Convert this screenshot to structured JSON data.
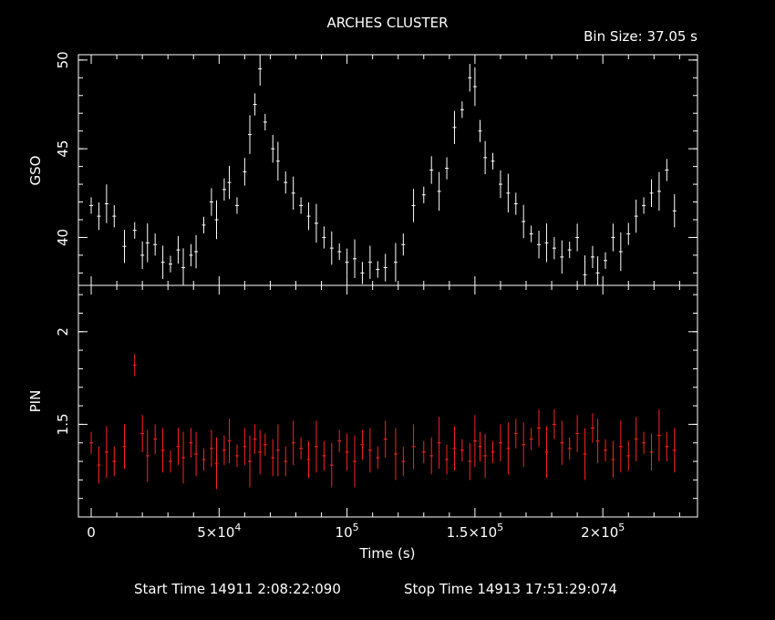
{
  "title": "ARCHES CLUSTER",
  "bin_label": "Bin Size: 37.05 s",
  "footer": {
    "start": "Start Time 14911  2:08:22:090",
    "stop": "Stop Time 14913 17:51:29:074"
  },
  "colors": {
    "gso": "#ffffff",
    "pin": "#ff2020",
    "axes": "#ffffff",
    "background": "#000000"
  },
  "chart_data": [
    {
      "type": "scatter",
      "panel": "top",
      "ylabel": "GSO",
      "xlabel": "",
      "xlim": [
        -5000,
        237000
      ],
      "ylim": [
        37.3,
        50.3
      ],
      "yticks": [
        40,
        45,
        50
      ],
      "ytick_labels": [
        "40",
        "45",
        "50"
      ],
      "color": "#ffffff",
      "x": [
        0,
        3000,
        6000,
        9000,
        13000,
        17000,
        20000,
        22000,
        25000,
        28000,
        31000,
        34000,
        36000,
        39000,
        41000,
        44000,
        47000,
        49000,
        52000,
        54000,
        57000,
        60000,
        62000,
        64000,
        66000,
        68000,
        71000,
        73000,
        76000,
        79000,
        82000,
        85000,
        88000,
        91000,
        94000,
        97000,
        100000,
        103000,
        106000,
        109000,
        112000,
        115000,
        119000,
        122000,
        126000,
        130000,
        133000,
        136000,
        139000,
        142000,
        145000,
        148000,
        150000,
        152000,
        154000,
        157000,
        160000,
        163000,
        166000,
        169000,
        172000,
        175000,
        178000,
        181000,
        184000,
        187000,
        190000,
        193000,
        196000,
        198000,
        201000,
        204000,
        207000,
        210000,
        213000,
        216000,
        219000,
        222000,
        225000,
        228000
      ],
      "y": [
        41.8,
        41.2,
        41.9,
        41.2,
        39.5,
        40.4,
        39.0,
        39.7,
        39.6,
        38.6,
        38.5,
        39.3,
        38.3,
        39.0,
        39.2,
        40.7,
        42.0,
        41.0,
        42.7,
        43.1,
        41.8,
        43.7,
        45.8,
        47.5,
        49.5,
        46.5,
        45.0,
        44.3,
        43.1,
        42.5,
        41.8,
        41.2,
        40.8,
        40.0,
        39.4,
        39.2,
        38.6,
        38.8,
        38.0,
        38.6,
        38.2,
        38.3,
        38.6,
        39.6,
        41.8,
        42.4,
        43.8,
        42.6,
        43.9,
        46.2,
        47.2,
        49.0,
        48.5,
        46.0,
        44.5,
        44.3,
        43.0,
        42.5,
        41.9,
        40.9,
        40.2,
        39.6,
        39.7,
        39.4,
        38.9,
        39.3,
        40.0,
        37.9,
        38.9,
        38.0,
        38.7,
        40.0,
        39.2,
        40.2,
        41.2,
        41.8,
        42.5,
        42.6,
        43.8,
        41.5
      ]
    },
    {
      "type": "scatter",
      "panel": "bottom",
      "ylabel": "PIN",
      "xlabel": "Time (s)",
      "xlim": [
        -5000,
        237000
      ],
      "ylim": [
        1.0,
        2.25
      ],
      "yticks": [
        1.5,
        2.0
      ],
      "ytick_labels": [
        "1.5",
        "2"
      ],
      "xticks": [
        0,
        50000,
        100000,
        150000,
        200000
      ],
      "xtick_labels": [
        {
          "base": "0",
          "exp": ""
        },
        {
          "base": "5×10",
          "exp": "4"
        },
        {
          "base": "10",
          "exp": "5"
        },
        {
          "base": "1.5×10",
          "exp": "5"
        },
        {
          "base": "2×10",
          "exp": "5"
        }
      ],
      "color": "#ff2020",
      "x": [
        0,
        3000,
        6000,
        9000,
        13000,
        17000,
        20000,
        22000,
        25000,
        28000,
        31000,
        34000,
        36000,
        39000,
        41000,
        44000,
        47000,
        49000,
        52000,
        54000,
        57000,
        60000,
        62000,
        64000,
        66000,
        68000,
        71000,
        73000,
        76000,
        79000,
        82000,
        85000,
        88000,
        91000,
        94000,
        97000,
        100000,
        103000,
        106000,
        109000,
        112000,
        115000,
        119000,
        122000,
        126000,
        130000,
        133000,
        136000,
        139000,
        142000,
        145000,
        148000,
        150000,
        152000,
        154000,
        157000,
        160000,
        163000,
        166000,
        169000,
        172000,
        175000,
        178000,
        181000,
        184000,
        187000,
        190000,
        193000,
        196000,
        198000,
        201000,
        204000,
        207000,
        210000,
        213000,
        216000,
        219000,
        222000,
        225000,
        228000
      ],
      "y": [
        1.4,
        1.28,
        1.35,
        1.3,
        1.38,
        1.82,
        1.45,
        1.33,
        1.42,
        1.36,
        1.3,
        1.38,
        1.32,
        1.4,
        1.34,
        1.31,
        1.37,
        1.29,
        1.36,
        1.41,
        1.33,
        1.38,
        1.3,
        1.42,
        1.35,
        1.39,
        1.32,
        1.36,
        1.3,
        1.4,
        1.37,
        1.31,
        1.38,
        1.33,
        1.28,
        1.41,
        1.35,
        1.3,
        1.39,
        1.36,
        1.32,
        1.42,
        1.34,
        1.3,
        1.38,
        1.35,
        1.33,
        1.4,
        1.31,
        1.37,
        1.36,
        1.3,
        1.41,
        1.38,
        1.33,
        1.35,
        1.4,
        1.37,
        1.45,
        1.39,
        1.42,
        1.48,
        1.35,
        1.5,
        1.4,
        1.37,
        1.45,
        1.34,
        1.48,
        1.41,
        1.36,
        1.31,
        1.38,
        1.33,
        1.42,
        1.4,
        1.35,
        1.44,
        1.38,
        1.36
      ]
    }
  ]
}
